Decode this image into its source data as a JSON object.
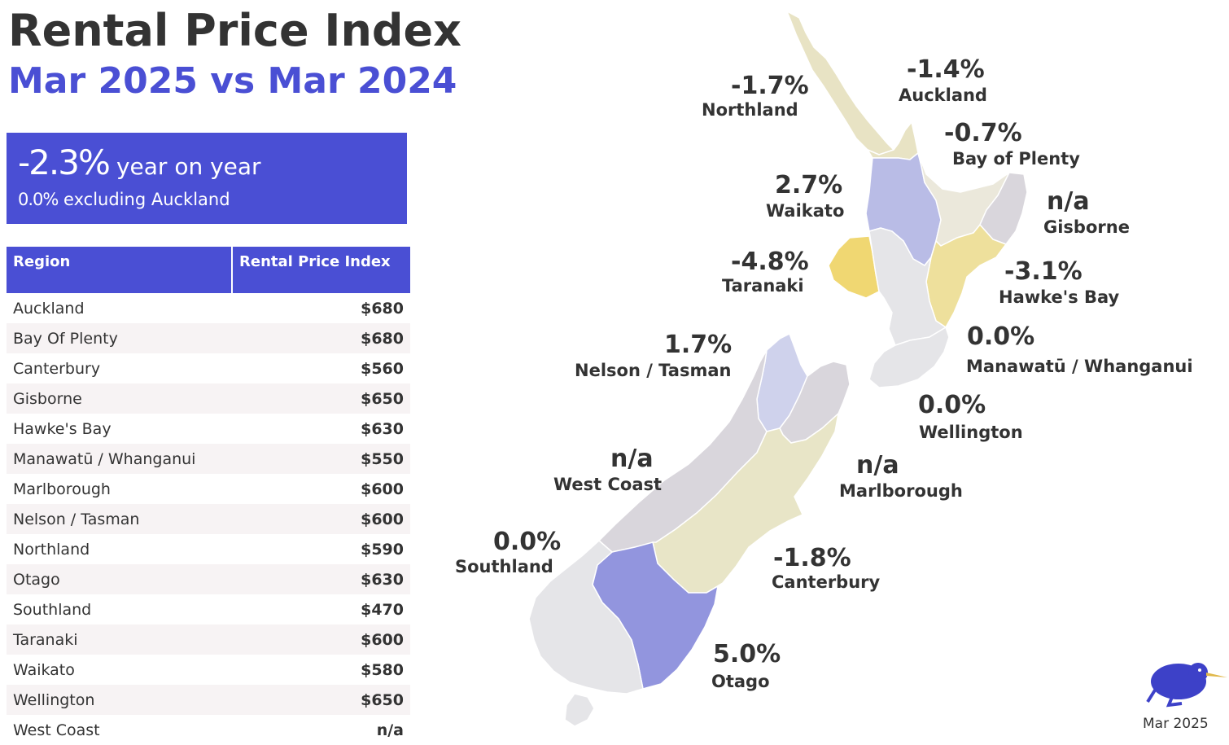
{
  "title": "Rental Price Index",
  "subtitle": "Mar 2025 vs Mar 2024",
  "summary": {
    "value": "-2.3%",
    "label": "year on year",
    "sub_value": "0.0%",
    "sub_label": "excluding Auckland",
    "bg_color": "#4a4fd4"
  },
  "table": {
    "headers": [
      "Region",
      "Rental Price Index"
    ],
    "rows": [
      {
        "region": "Auckland",
        "value": "$680"
      },
      {
        "region": "Bay Of Plenty",
        "value": "$680"
      },
      {
        "region": "Canterbury",
        "value": "$560"
      },
      {
        "region": "Gisborne",
        "value": "$650"
      },
      {
        "region": "Hawke's Bay",
        "value": "$630"
      },
      {
        "region": "Manawatū / Whanganui",
        "value": "$550"
      },
      {
        "region": "Marlborough",
        "value": "$600"
      },
      {
        "region": "Nelson / Tasman",
        "value": "$600"
      },
      {
        "region": "Northland",
        "value": "$590"
      },
      {
        "region": "Otago",
        "value": "$630"
      },
      {
        "region": "Southland",
        "value": "$470"
      },
      {
        "region": "Taranaki",
        "value": "$600"
      },
      {
        "region": "Waikato",
        "value": "$580"
      },
      {
        "region": "Wellington",
        "value": "$650"
      },
      {
        "region": "West Coast",
        "value": "n/a"
      }
    ]
  },
  "map": {
    "regions": {
      "northland": {
        "change": "-1.7%",
        "name": "Northland",
        "color": "#e8e3c4"
      },
      "auckland": {
        "change": "-1.4%",
        "name": "Auckland",
        "color": "#e8e3c4"
      },
      "bay_of_plenty": {
        "change": "-0.7%",
        "name": "Bay of Plenty",
        "color": "#ebe8db"
      },
      "waikato": {
        "change": "2.7%",
        "name": "Waikato",
        "color": "#b9bce6"
      },
      "gisborne": {
        "change": "n/a",
        "name": "Gisborne",
        "color": "#d9d6dc"
      },
      "taranaki": {
        "change": "-4.8%",
        "name": "Taranaki",
        "color": "#f0d772"
      },
      "hawkes_bay": {
        "change": "-3.1%",
        "name": "Hawke's Bay",
        "color": "#eee09c"
      },
      "manawatu": {
        "change": "0.0%",
        "name": "Manawatū / Whanganui",
        "color": "#e5e5e8"
      },
      "wellington": {
        "change": "0.0%",
        "name": "Wellington",
        "color": "#e5e5e8"
      },
      "nelson": {
        "change": "1.7%",
        "name": "Nelson / Tasman",
        "color": "#cfd2ec"
      },
      "marlborough": {
        "change": "n/a",
        "name": "Marlborough",
        "color": "#d9d6dc"
      },
      "west_coast": {
        "change": "n/a",
        "name": "West Coast",
        "color": "#d9d6dc"
      },
      "canterbury": {
        "change": "-1.8%",
        "name": "Canterbury",
        "color": "#e8e5c7"
      },
      "otago": {
        "change": "5.0%",
        "name": "Otago",
        "color": "#9295de"
      },
      "southland": {
        "change": "0.0%",
        "name": "Southland",
        "color": "#e5e5e8"
      }
    }
  },
  "logo": {
    "icon": "kiwi-bird-icon",
    "color": "#3d41c8"
  },
  "date": "Mar 2025"
}
